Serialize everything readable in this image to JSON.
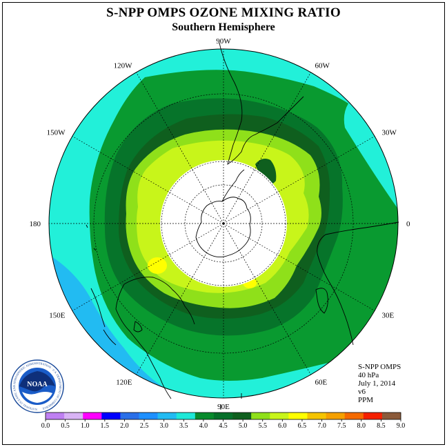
{
  "title": "S-NPP OMPS OZONE MIXING RATIO",
  "subtitle": "Southern Hemisphere",
  "logo_text": "NOAA",
  "logo_ring_text": "NATIONAL OCEANIC AND ATMOSPHERIC ADMINISTRATION · U.S. DEPARTMENT OF COMMERCE",
  "info": {
    "instrument": "S-NPP OMPS",
    "level": "40 hPa",
    "date": "July 1, 2014",
    "version": "v6",
    "units": "PPM"
  },
  "longitude_labels": [
    {
      "text": "0",
      "lon": 0
    },
    {
      "text": "30E",
      "lon": 30
    },
    {
      "text": "60E",
      "lon": 60
    },
    {
      "text": "90E",
      "lon": 90
    },
    {
      "text": "120E",
      "lon": 120
    },
    {
      "text": "150E",
      "lon": 150
    },
    {
      "text": "180",
      "lon": 180
    },
    {
      "text": "150W",
      "lon": -150
    },
    {
      "text": "120W",
      "lon": -120
    },
    {
      "text": "90W",
      "lon": -90
    },
    {
      "text": "60W",
      "lon": -60
    },
    {
      "text": "30W",
      "lon": -30
    }
  ],
  "colorbar": {
    "ticks": [
      "0.0",
      "0.5",
      "1.0",
      "1.5",
      "2.0",
      "2.5",
      "3.0",
      "3.5",
      "4.0",
      "4.5",
      "5.0",
      "5.5",
      "6.0",
      "6.5",
      "7.0",
      "7.5",
      "8.0",
      "8.5",
      "9.0"
    ],
    "colors": [
      "#bf80f2",
      "#d9b3f5",
      "#ff00ff",
      "#0000ff",
      "#2a6fe8",
      "#1e90ff",
      "#22bbf2",
      "#1ee8d8",
      "#088a2c",
      "#06702a",
      "#0f5f1e",
      "#8fe01a",
      "#c8f51a",
      "#ffff00",
      "#f5c400",
      "#f5a000",
      "#f56a00",
      "#f52000",
      "#8b5a3a"
    ]
  },
  "map_colors": {
    "cyan": "#22f0d9",
    "blue": "#22bbf2",
    "green_4": "#099a30",
    "green_45": "#06742a",
    "green_5": "#0f5f1e",
    "lime_55": "#8fe01a",
    "lime_6": "#c8f51a",
    "yellow_65": "#ffff00",
    "no_data": "#ffffff"
  }
}
